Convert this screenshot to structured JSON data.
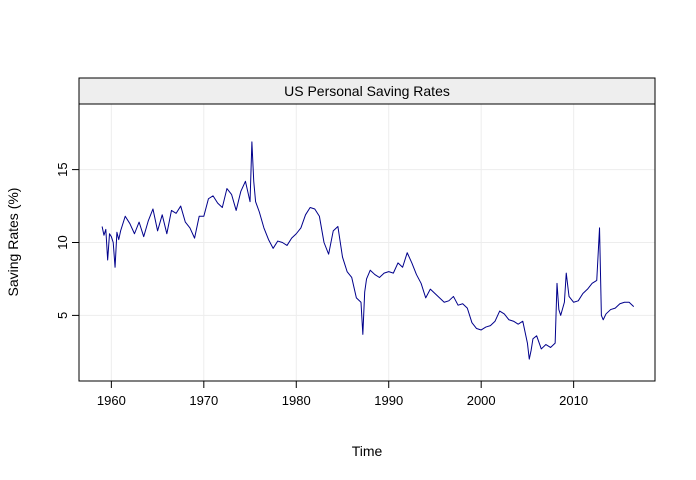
{
  "chart_data": {
    "type": "line",
    "title": "US Personal Saving Rates",
    "xlabel": "Time",
    "ylabel": "Saving Rates (%)",
    "xlim": [
      1956.5,
      2018.8
    ],
    "ylim": [
      0.5,
      19.5
    ],
    "x_ticks": [
      1960,
      1970,
      1980,
      1990,
      2000,
      2010
    ],
    "y_ticks": [
      5,
      10,
      15
    ],
    "grid": true,
    "colors": {
      "line": "#00008b",
      "strip": "#eeeeee",
      "grid": "#ededed",
      "frame": "#000000"
    },
    "series": [
      {
        "x": [
          1959.0,
          1959.2,
          1959.4,
          1959.6,
          1959.8,
          1960.0,
          1960.2,
          1960.4,
          1960.6,
          1960.8,
          1961.0,
          1961.5,
          1962.0,
          1962.5,
          1963.0,
          1963.5,
          1964.0,
          1964.5,
          1965.0,
          1965.5,
          1966.0,
          1966.5,
          1967.0,
          1967.5,
          1968.0,
          1968.5,
          1969.0,
          1969.5,
          1970.0,
          1970.5,
          1971.0,
          1971.5,
          1972.0,
          1972.5,
          1973.0,
          1973.5,
          1974.0,
          1974.5,
          1975.0,
          1975.2,
          1975.4,
          1975.6,
          1976.0,
          1976.5,
          1977.0,
          1977.5,
          1978.0,
          1978.5,
          1979.0,
          1979.5,
          1980.0,
          1980.5,
          1981.0,
          1981.5,
          1982.0,
          1982.5,
          1983.0,
          1983.5,
          1984.0,
          1984.5,
          1985.0,
          1985.5,
          1986.0,
          1986.5,
          1987.0,
          1987.2,
          1987.4,
          1987.6,
          1988.0,
          1988.5,
          1989.0,
          1989.5,
          1990.0,
          1990.5,
          1991.0,
          1991.5,
          1992.0,
          1992.5,
          1993.0,
          1993.5,
          1994.0,
          1994.5,
          1995.0,
          1995.5,
          1996.0,
          1996.5,
          1997.0,
          1997.5,
          1998.0,
          1998.5,
          1999.0,
          1999.5,
          2000.0,
          2000.5,
          2001.0,
          2001.5,
          2002.0,
          2002.5,
          2003.0,
          2003.5,
          2004.0,
          2004.5,
          2005.0,
          2005.2,
          2005.4,
          2005.6,
          2006.0,
          2006.5,
          2007.0,
          2007.5,
          2008.0,
          2008.2,
          2008.4,
          2008.6,
          2009.0,
          2009.2,
          2009.5,
          2010.0,
          2010.5,
          2011.0,
          2011.5,
          2012.0,
          2012.5,
          2012.8,
          2013.0,
          2013.2,
          2013.5,
          2014.0,
          2014.5,
          2015.0,
          2015.5,
          2016.0,
          2016.5
        ],
        "values": [
          11.1,
          10.5,
          10.9,
          8.8,
          10.6,
          10.4,
          10.0,
          8.3,
          10.7,
          10.2,
          10.8,
          11.8,
          11.3,
          10.6,
          11.4,
          10.4,
          11.5,
          12.3,
          10.8,
          11.9,
          10.6,
          12.2,
          12.0,
          12.5,
          11.4,
          11.0,
          10.3,
          11.8,
          11.8,
          13.0,
          13.2,
          12.7,
          12.4,
          13.7,
          13.3,
          12.2,
          13.5,
          14.2,
          12.8,
          16.9,
          14.2,
          12.8,
          12.1,
          11.0,
          10.2,
          9.6,
          10.1,
          10.0,
          9.8,
          10.3,
          10.6,
          11.0,
          11.9,
          12.4,
          12.3,
          11.8,
          10.0,
          9.2,
          10.8,
          11.1,
          9.0,
          8.0,
          7.6,
          6.2,
          5.9,
          3.7,
          6.6,
          7.5,
          8.1,
          7.8,
          7.6,
          7.9,
          8.0,
          7.9,
          8.6,
          8.3,
          9.3,
          8.6,
          7.8,
          7.2,
          6.2,
          6.8,
          6.5,
          6.2,
          5.9,
          6.0,
          6.3,
          5.7,
          5.8,
          5.5,
          4.5,
          4.1,
          4.0,
          4.2,
          4.3,
          4.6,
          5.3,
          5.1,
          4.7,
          4.6,
          4.4,
          4.6,
          3.1,
          2.0,
          2.6,
          3.4,
          3.6,
          2.7,
          3.0,
          2.8,
          3.1,
          7.2,
          5.4,
          5.0,
          5.9,
          7.9,
          6.3,
          5.9,
          6.0,
          6.5,
          6.8,
          7.2,
          7.4,
          11.0,
          5.0,
          4.7,
          5.1,
          5.4,
          5.5,
          5.8,
          5.9,
          5.9,
          5.6
        ]
      }
    ]
  }
}
